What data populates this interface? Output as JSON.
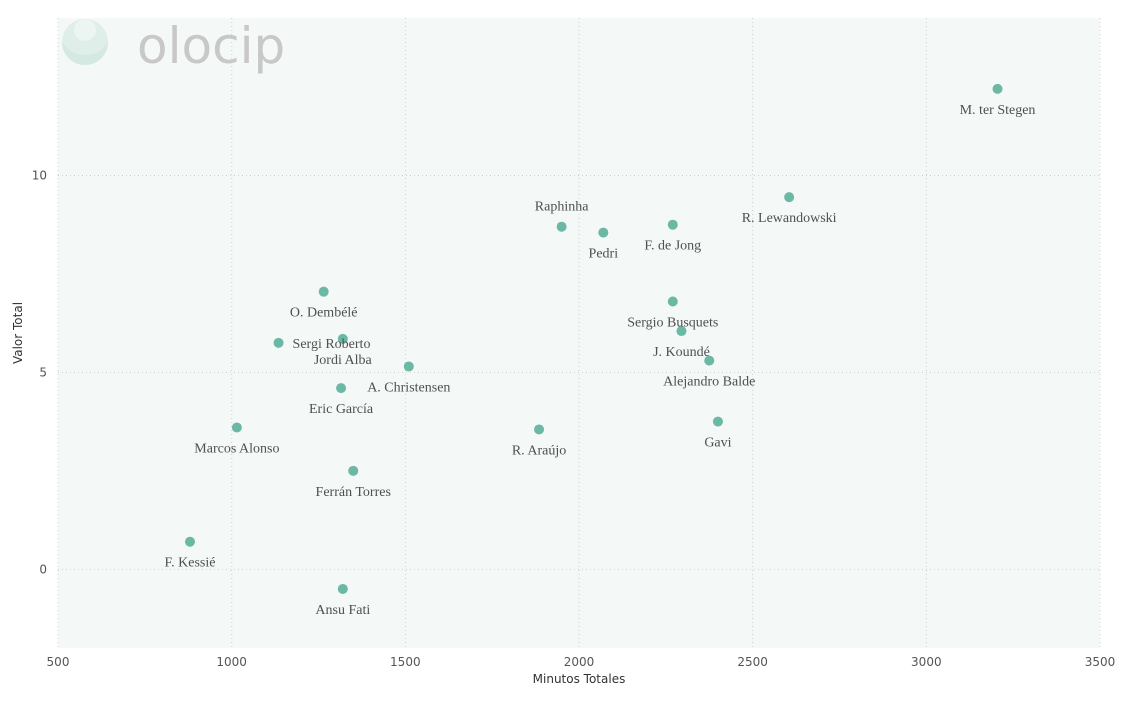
{
  "brand": {
    "logo_text": "olocip"
  },
  "chart_data": {
    "type": "scatter",
    "title": "",
    "xlabel": "Minutos Totales",
    "ylabel": "Valor Total",
    "xlim": [
      500,
      3500
    ],
    "ylim": [
      -2,
      14
    ],
    "xticks": [
      500,
      1000,
      1500,
      2000,
      2500,
      3000,
      3500
    ],
    "yticks": [
      0,
      5,
      10
    ],
    "grid": true,
    "colors": {
      "point": "#6BB8A4",
      "plot_bg": "#F4F8F6",
      "grid": "#C9CFCC"
    },
    "points": [
      {
        "name": "M. ter Stegen",
        "x": 3205,
        "y": 12.2,
        "label_pos": "below"
      },
      {
        "name": "R. Lewandowski",
        "x": 2605,
        "y": 9.45,
        "label_pos": "below"
      },
      {
        "name": "Raphinha",
        "x": 1950,
        "y": 8.7,
        "label_pos": "above"
      },
      {
        "name": "Pedri",
        "x": 2070,
        "y": 8.55,
        "label_pos": "below"
      },
      {
        "name": "F. de Jong",
        "x": 2270,
        "y": 8.75,
        "label_pos": "below"
      },
      {
        "name": "O. Dembélé",
        "x": 1265,
        "y": 7.05,
        "label_pos": "below"
      },
      {
        "name": "Sergio Busquets",
        "x": 2270,
        "y": 6.8,
        "label_pos": "below"
      },
      {
        "name": "J. Koundé",
        "x": 2295,
        "y": 6.05,
        "label_pos": "below"
      },
      {
        "name": "Sergi Roberto",
        "x": 1135,
        "y": 5.75,
        "label_pos": "right"
      },
      {
        "name": "Jordi Alba",
        "x": 1320,
        "y": 5.85,
        "label_pos": "below"
      },
      {
        "name": "Alejandro Balde",
        "x": 2375,
        "y": 5.3,
        "label_pos": "below"
      },
      {
        "name": "A. Christensen",
        "x": 1510,
        "y": 5.15,
        "label_pos": "below"
      },
      {
        "name": "Eric García",
        "x": 1315,
        "y": 4.6,
        "label_pos": "below"
      },
      {
        "name": "Gavi",
        "x": 2400,
        "y": 3.75,
        "label_pos": "below"
      },
      {
        "name": "Marcos Alonso",
        "x": 1015,
        "y": 3.6,
        "label_pos": "below"
      },
      {
        "name": "R. Araújo",
        "x": 1885,
        "y": 3.55,
        "label_pos": "below"
      },
      {
        "name": "Ferrán Torres",
        "x": 1350,
        "y": 2.5,
        "label_pos": "below"
      },
      {
        "name": "F. Kessié",
        "x": 880,
        "y": 0.7,
        "label_pos": "below"
      },
      {
        "name": "Ansu Fati",
        "x": 1320,
        "y": -0.5,
        "label_pos": "below"
      }
    ]
  }
}
